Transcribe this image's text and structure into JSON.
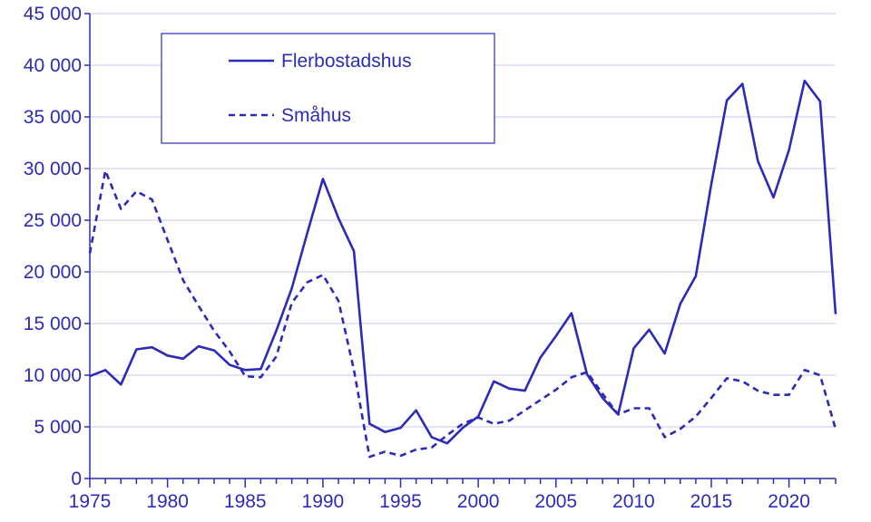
{
  "chart_data": {
    "type": "line",
    "title": "",
    "xlabel": "",
    "ylabel": "",
    "x_tick_labels": [
      "1975",
      "1980",
      "1985",
      "1990",
      "1995",
      "2000",
      "2005",
      "2010",
      "2015",
      "2020"
    ],
    "y_tick_labels": [
      "0",
      "5 000",
      "10 000",
      "15 000",
      "20 000",
      "25 000",
      "30 000",
      "35 000",
      "40 000",
      "45 000"
    ],
    "xlim": [
      1975,
      2023
    ],
    "ylim": [
      0,
      45000
    ],
    "grid": "horizontal",
    "legend_position": "top-left",
    "x": [
      1975,
      1976,
      1977,
      1978,
      1979,
      1980,
      1981,
      1982,
      1983,
      1984,
      1985,
      1986,
      1987,
      1988,
      1989,
      1990,
      1991,
      1992,
      1993,
      1994,
      1995,
      1996,
      1997,
      1998,
      1999,
      2000,
      2001,
      2002,
      2003,
      2004,
      2005,
      2006,
      2007,
      2008,
      2009,
      2010,
      2011,
      2012,
      2013,
      2014,
      2015,
      2016,
      2017,
      2018,
      2019,
      2020,
      2021,
      2022,
      2023
    ],
    "series": [
      {
        "name": "Flerbostadshus",
        "style": "solid",
        "color": "#2b2bb8",
        "values": [
          9900,
          10500,
          9100,
          12500,
          12700,
          11900,
          11600,
          12800,
          12400,
          11000,
          10500,
          10600,
          14300,
          18400,
          23800,
          29000,
          25200,
          22000,
          5300,
          4500,
          4900,
          6600,
          4000,
          3400,
          4900,
          6000,
          9400,
          8700,
          8500,
          11700,
          13800,
          16000,
          10100,
          7800,
          6200,
          12600,
          14400,
          12100,
          16900,
          19600,
          28500,
          36600,
          38200,
          30700,
          27200,
          31800,
          38500,
          36500,
          15900
        ]
      },
      {
        "name": "Småhus",
        "style": "dashed",
        "color": "#2b2bb8",
        "values": [
          21800,
          29800,
          26100,
          27800,
          27000,
          23100,
          19200,
          16700,
          14300,
          12300,
          9900,
          9800,
          11800,
          17000,
          19000,
          19700,
          17200,
          10500,
          2100,
          2600,
          2200,
          2800,
          3000,
          4200,
          5300,
          5900,
          5300,
          5600,
          6600,
          7600,
          8600,
          9800,
          10300,
          8200,
          6200,
          6800,
          6800,
          4000,
          4800,
          6000,
          7800,
          9700,
          9400,
          8500,
          8100,
          8100,
          10500,
          10000,
          4800
        ]
      }
    ]
  }
}
